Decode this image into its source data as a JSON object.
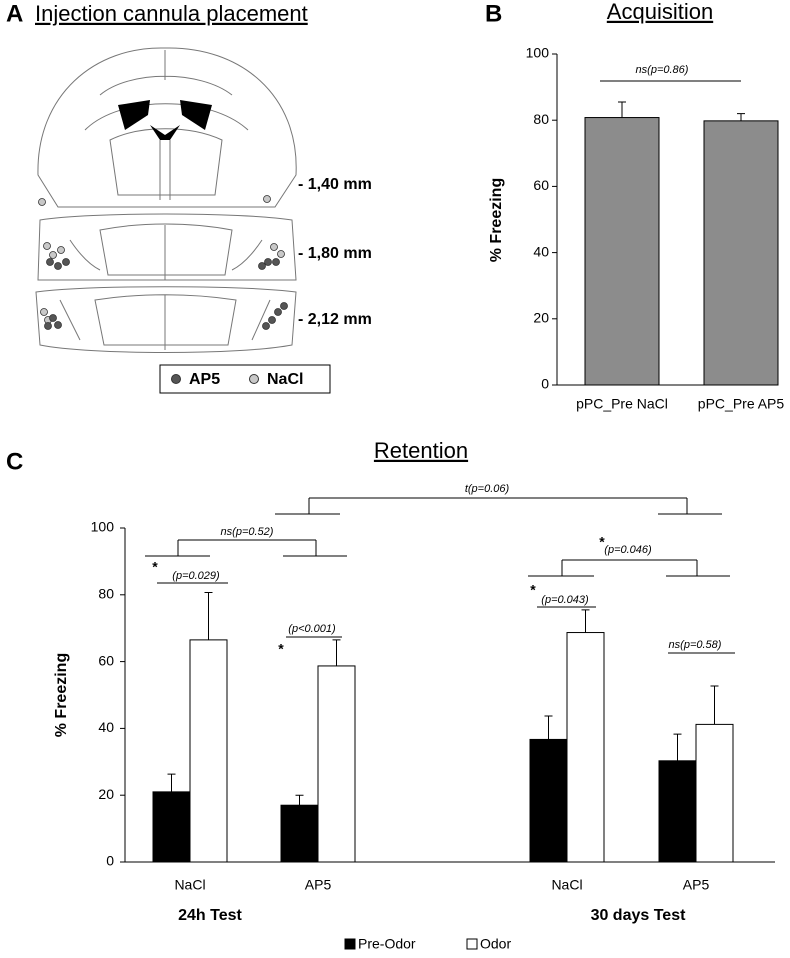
{
  "panel_a": {
    "label": "A",
    "title": "Injection cannula placement",
    "levels": [
      "- 1,40 mm",
      "- 1,80 mm",
      "- 2,12 mm"
    ],
    "legend": [
      {
        "name": "AP5",
        "color": "#555555"
      },
      {
        "name": "NaCl",
        "color": "#c8c8c8"
      }
    ]
  },
  "chart_data": [
    {
      "panel": "B",
      "type": "bar",
      "title": "Acquisition",
      "y_label": "% Freezing",
      "categories": [
        "pPC_Pre NaCl",
        "pPC_Pre AP5"
      ],
      "values": [
        80.8,
        79.8
      ],
      "errors": [
        4.7,
        2.2
      ],
      "color": "#8c8c8c",
      "ylim": [
        0,
        100
      ],
      "yticks": [
        0,
        20,
        40,
        60,
        80,
        100
      ],
      "annotations": [
        {
          "text": "ns(p=0.86)"
        }
      ]
    },
    {
      "panel": "C",
      "type": "bar",
      "title": "Retention",
      "y_label": "% Freezing",
      "categories": [
        "NaCl",
        "AP5",
        "NaCl",
        "AP5"
      ],
      "groups": [
        "24h Test",
        "30 days Test"
      ],
      "series": [
        {
          "name": "Pre-Odor",
          "color": "#000000",
          "values": [
            21,
            17,
            36.7,
            30.3
          ],
          "errors": [
            5.3,
            3,
            7,
            8
          ]
        },
        {
          "name": "Odor",
          "color": "#ffffff",
          "values": [
            66.5,
            58.7,
            68.7,
            41.2
          ],
          "errors": [
            14.2,
            7.8,
            6.8,
            11.5
          ]
        }
      ],
      "ylim": [
        0,
        100
      ],
      "yticks": [
        0,
        20,
        40,
        60,
        80,
        100
      ],
      "annotations": [
        {
          "star": "*",
          "text": "(p=0.029)"
        },
        {
          "star": "*",
          "text": "(p<0.001)"
        },
        {
          "star": "*",
          "text": "(p=0.043)"
        },
        {
          "text": "ns(p=0.58)"
        },
        {
          "text": "ns(p=0.52)"
        },
        {
          "star": "*",
          "text": "(p=0.046)"
        },
        {
          "text": "t(p=0.06)"
        }
      ]
    }
  ]
}
